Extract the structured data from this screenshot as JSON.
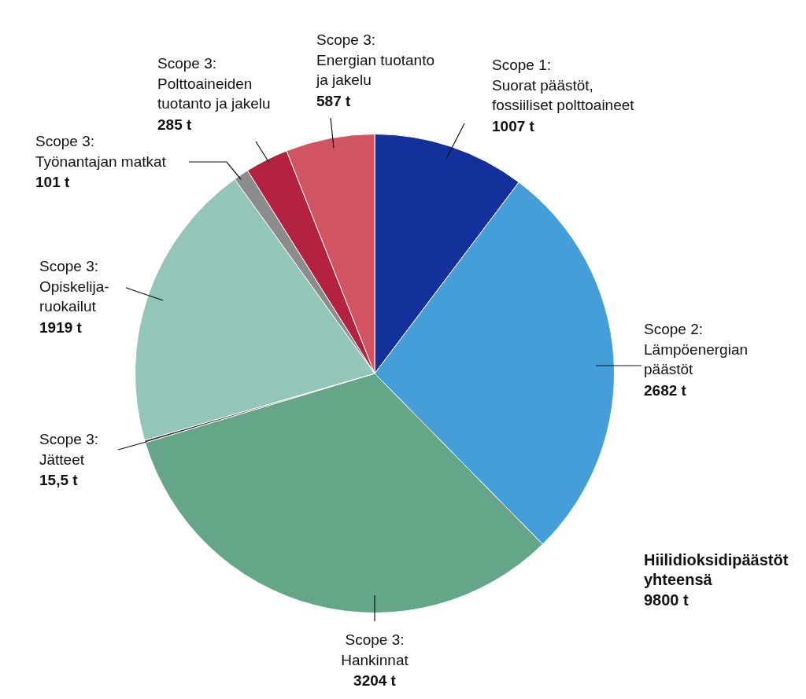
{
  "chart_data": {
    "type": "pie",
    "categories": [
      [
        "Scope 1:",
        "Suorat päästöt,",
        "fossiiliset polttoaineet"
      ],
      [
        "Scope 2:",
        "Lämpöenergian",
        "päästöt"
      ],
      [
        "Scope 3:",
        "Hankinnat"
      ],
      [
        "Scope 3:",
        "Jätteet"
      ],
      [
        "Scope 3:",
        "Opiskelija-",
        "ruokailut"
      ],
      [
        "Scope 3:",
        "Työnantajan matkat"
      ],
      [
        "Scope 3:",
        "Polttoaineiden",
        "tuotanto ja jakelu"
      ],
      [
        "Scope 3:",
        "Energian tuotanto",
        "ja jakelu"
      ]
    ],
    "values": [
      1007,
      2682,
      3204,
      15.5,
      1919,
      101,
      285,
      587
    ],
    "value_labels": [
      "1007 t",
      "2682 t",
      "3204 t",
      "15,5 t",
      "1919 t",
      "101 t",
      "285 t",
      "587 t"
    ],
    "colors": [
      "#14309a",
      "#459ed8",
      "#65a688",
      "#333333",
      "#94c5b9",
      "#8c8c8c",
      "#b3233f",
      "#d15463"
    ],
    "data_labels": true,
    "legend": "none",
    "annotations": [
      {
        "text": [
          "Hiilidioksidipäästöt",
          "yhteensä",
          "9800 t"
        ]
      }
    ]
  }
}
